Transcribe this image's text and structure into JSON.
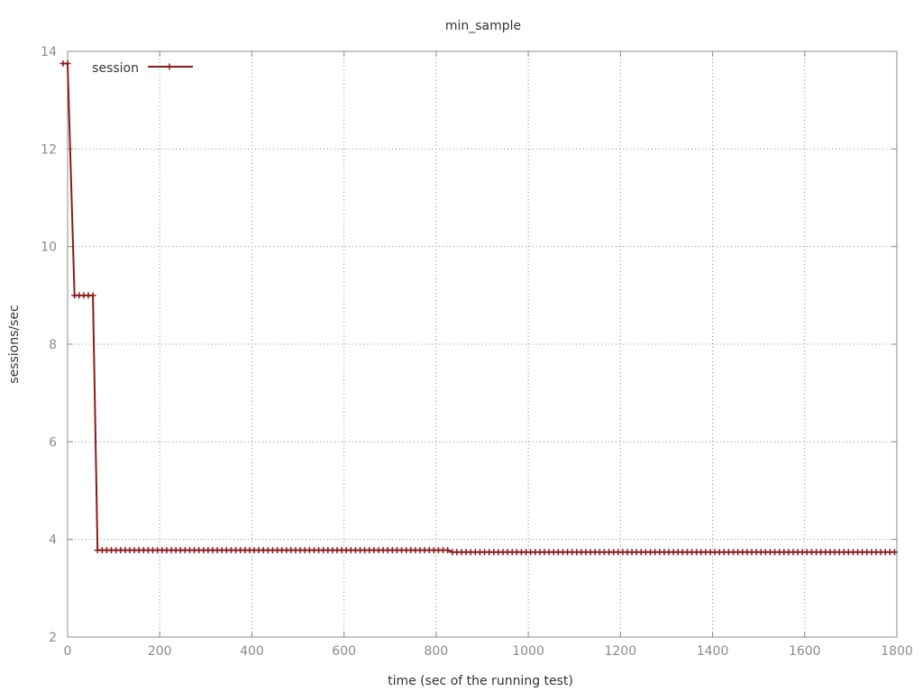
{
  "chart_data": {
    "type": "line",
    "title": "min_sample",
    "xlabel": "time (sec of the running test)",
    "ylabel": "sessions/sec",
    "xlim": [
      0,
      1800
    ],
    "ylim": [
      2,
      14
    ],
    "xticks": [
      0,
      200,
      400,
      600,
      800,
      1000,
      1200,
      1400,
      1600,
      1800
    ],
    "yticks": [
      2,
      4,
      6,
      8,
      10,
      12,
      14
    ],
    "grid": true,
    "legend_position": "top-left",
    "series": [
      {
        "name": "session",
        "color": "#8b1a1a",
        "marker": "plus",
        "segments": [
          {
            "x_start": -10,
            "x_end": 5,
            "y": 13.75
          },
          {
            "x_start": 15,
            "x_end": 55,
            "y": 9.0
          },
          {
            "x_start": 65,
            "x_end": 825,
            "y": 3.78
          },
          {
            "x_start": 835,
            "x_end": 1800,
            "y": 3.74
          }
        ],
        "step_interval": 10
      }
    ]
  }
}
